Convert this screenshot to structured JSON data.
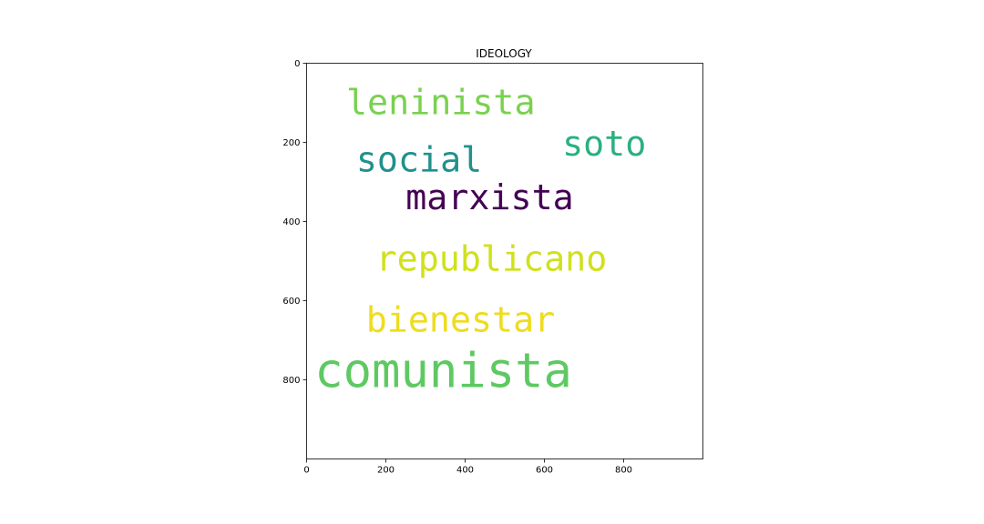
{
  "chart_data": {
    "type": "wordcloud",
    "title": "IDEOLOGY",
    "xlim": [
      0,
      1000
    ],
    "ylim": [
      1000,
      0
    ],
    "x_ticks": [
      "0",
      "200",
      "400",
      "600",
      "800"
    ],
    "y_ticks": [
      "0",
      "200",
      "400",
      "600",
      "800"
    ],
    "grid": false,
    "words": [
      {
        "text": "leninista",
        "x": 100,
        "y": 60,
        "size": 110,
        "color": "#7ad151"
      },
      {
        "text": "soto",
        "x": 645,
        "y": 165,
        "size": 110,
        "color": "#2ab07f"
      },
      {
        "text": "social",
        "x": 125,
        "y": 205,
        "size": 110,
        "color": "#21918c"
      },
      {
        "text": "marxista",
        "x": 250,
        "y": 300,
        "size": 110,
        "color": "#440154"
      },
      {
        "text": "republicano",
        "x": 175,
        "y": 455,
        "size": 110,
        "color": "#d0e11c"
      },
      {
        "text": "bienestar",
        "x": 150,
        "y": 610,
        "size": 110,
        "color": "#eedc1f"
      },
      {
        "text": "comunista",
        "x": 20,
        "y": 725,
        "size": 150,
        "color": "#5ec962"
      }
    ]
  }
}
